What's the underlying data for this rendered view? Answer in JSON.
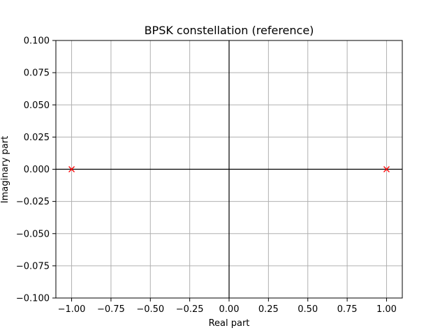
{
  "chart_data": {
    "type": "scatter",
    "title": "BPSK constellation (reference)",
    "xlabel": "Real part",
    "ylabel": "Imaginary part",
    "xlim": [
      -1.1,
      1.1
    ],
    "ylim": [
      -0.1,
      0.1
    ],
    "xticks": [
      -1.0,
      -0.75,
      -0.5,
      -0.25,
      0.0,
      0.25,
      0.5,
      0.75,
      1.0
    ],
    "xtick_labels": [
      "−1.00",
      "−0.75",
      "−0.50",
      "−0.25",
      "0.00",
      "0.25",
      "0.50",
      "0.75",
      "1.00"
    ],
    "yticks": [
      0.1,
      0.075,
      0.05,
      0.025,
      0.0,
      -0.025,
      -0.05,
      -0.075,
      -0.1
    ],
    "ytick_labels": [
      "0.100",
      "0.075",
      "0.050",
      "0.025",
      "0.000",
      "−0.025",
      "−0.050",
      "−0.075",
      "−0.100"
    ],
    "grid": true,
    "reference_lines": {
      "x": 0,
      "y": 0
    },
    "series": [
      {
        "marker": "x",
        "color": "#ff0000",
        "points": [
          {
            "x": -1.0,
            "y": 0.0
          },
          {
            "x": 1.0,
            "y": 0.0
          }
        ]
      }
    ],
    "colors": {
      "grid": "#b0b0b0",
      "axes": "#000000",
      "reference_line": "#000000"
    }
  }
}
